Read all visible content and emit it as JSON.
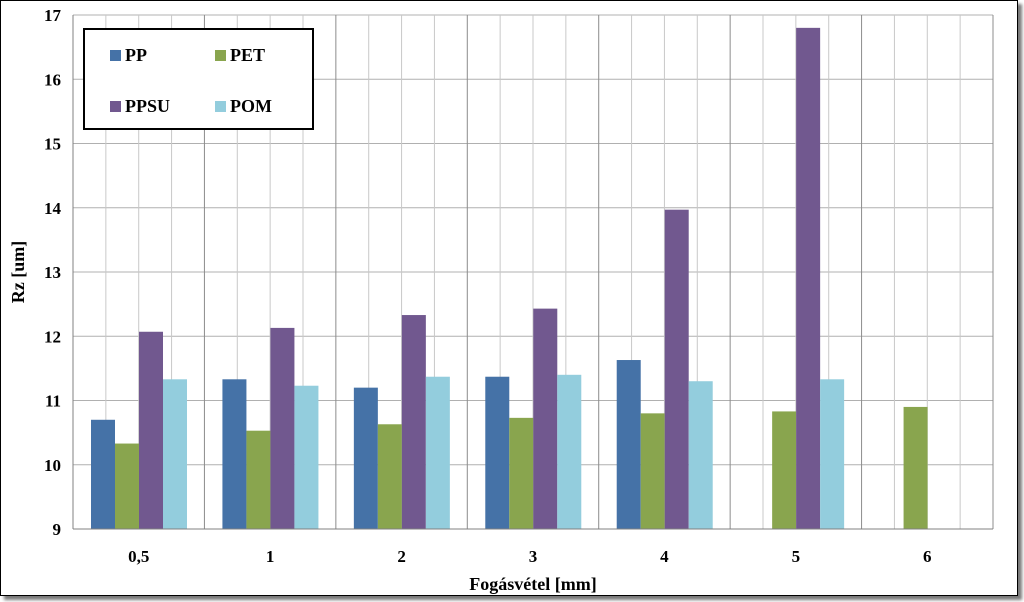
{
  "chart_data": {
    "type": "bar",
    "title": "",
    "xlabel": "Fogásvétel [mm]",
    "ylabel": "Rz [um]",
    "ylim": [
      9,
      17
    ],
    "yticks": [
      "9",
      "10",
      "11",
      "12",
      "13",
      "14",
      "15",
      "16",
      "17"
    ],
    "grid": true,
    "legend_position": "top-left",
    "categories": [
      "0,5",
      "1",
      "2",
      "3",
      "4",
      "5",
      "6"
    ],
    "series": [
      {
        "name": "PP",
        "color": "#4572A7",
        "values": [
          10.7,
          11.33,
          11.2,
          11.37,
          11.63,
          null,
          null
        ]
      },
      {
        "name": "PET",
        "color": "#89A54E",
        "values": [
          10.33,
          10.53,
          10.63,
          10.73,
          10.8,
          10.83,
          10.9
        ]
      },
      {
        "name": "PPSU",
        "color": "#71588F",
        "values": [
          12.07,
          12.13,
          12.33,
          12.43,
          13.97,
          16.8,
          null
        ]
      },
      {
        "name": "POM",
        "color": "#93CDDD",
        "values": [
          11.33,
          11.23,
          11.37,
          11.4,
          11.3,
          11.33,
          null
        ]
      }
    ]
  }
}
